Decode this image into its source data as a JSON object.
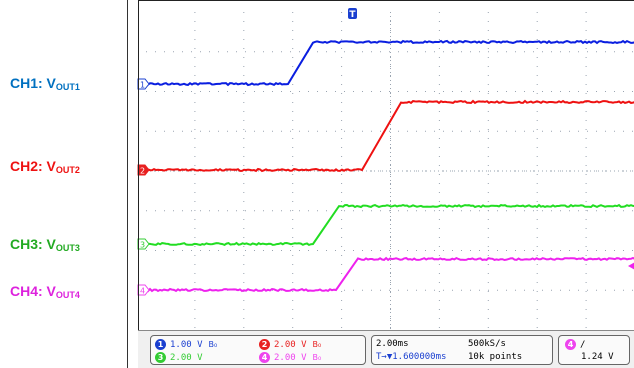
{
  "labels": [
    {
      "prefix": "CH1: V",
      "sub": "OUT1",
      "color": "#0070c0"
    },
    {
      "prefix": "CH2: V",
      "sub": "OUT2",
      "color": "#ee1111"
    },
    {
      "prefix": "CH3: V",
      "sub": "OUT3",
      "color": "#22aa22"
    },
    {
      "prefix": "CH4: V",
      "sub": "OUT4",
      "color": "#dd22dd"
    }
  ],
  "markers": {
    "trigger_top": "T",
    "ch1": "1",
    "ch2": "2",
    "ch3": "3",
    "ch4": "4"
  },
  "status": {
    "ch1": {
      "num": "1",
      "scale": "1.00 V",
      "color": "#1a3fd0"
    },
    "ch2": {
      "num": "2",
      "scale": "2.00 V",
      "color": "#e82020"
    },
    "ch3": {
      "num": "3",
      "scale": "2.00 V",
      "color": "#33cc33"
    },
    "ch4": {
      "num": "4",
      "scale": "2.00 V",
      "color": "#ee44ee"
    },
    "timebase": "2.00ms",
    "sample_rate": "500kS/s",
    "trigger_pos": "T→▼1.600000ms",
    "record_length": "10k points",
    "trigger_source": "4",
    "trigger_slope": "/",
    "trigger_level": "1.24 V"
  },
  "colors": {
    "ch1": "#0a1ee0",
    "ch2": "#ee1111",
    "ch3": "#22dd22",
    "ch4": "#ee22ee",
    "grid": "#9aa4b0"
  }
}
